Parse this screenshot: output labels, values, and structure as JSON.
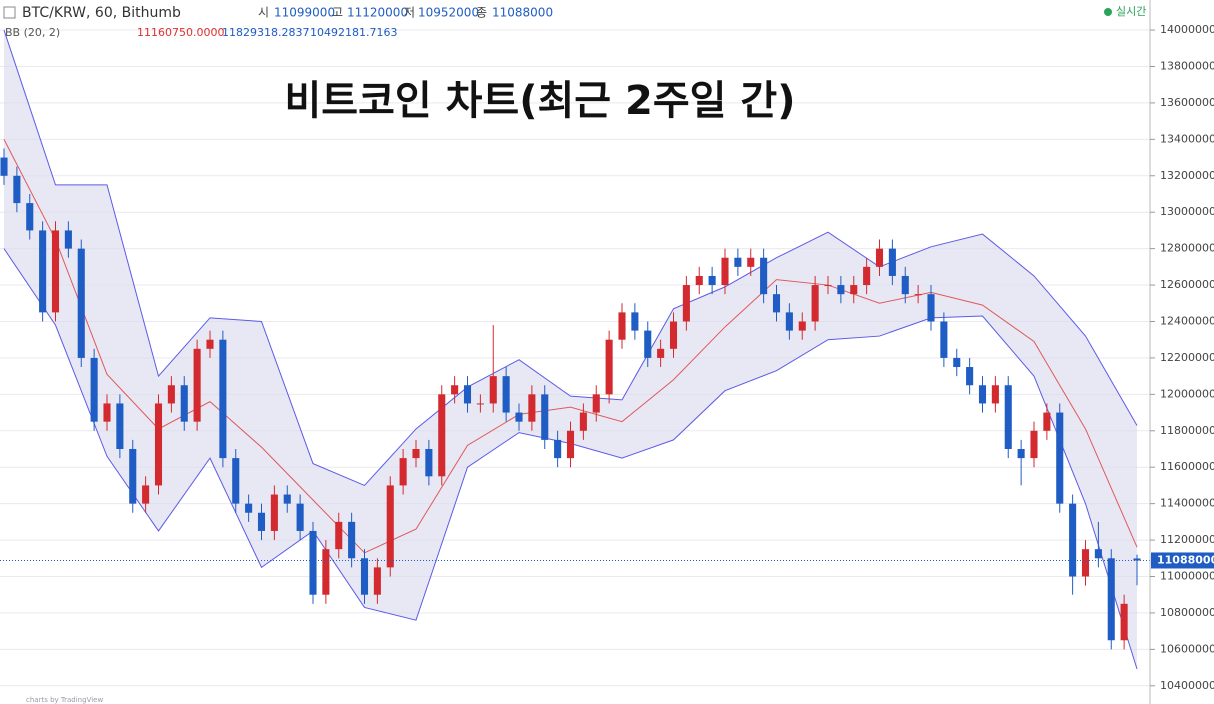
{
  "header": {
    "symbol": "BTC/KRW, 60, Bithumb",
    "open_label": "시",
    "high_label": "고",
    "low_label": "저",
    "close_label": "종",
    "indicator": "BB (20, 2)",
    "status": "실시간",
    "footer": "charts by TradingView"
  },
  "chart_data": {
    "type": "candlestick",
    "title": "비트코인 차트(최근 2주일 간)",
    "candles": {
      "open": [
        13300000,
        13200000,
        13050000,
        12900000,
        12450000,
        12900000,
        12800000,
        12200000,
        11850000,
        11950000,
        11700000,
        11400000,
        11500000,
        11950000,
        12050000,
        11850000,
        12250000,
        12300000,
        11650000,
        11400000,
        11350000,
        11250000,
        11450000,
        11400000,
        11250000,
        10900000,
        11150000,
        11300000,
        11100000,
        10900000,
        11050000,
        11500000,
        11650000,
        11700000,
        11550000,
        12000000,
        12050000,
        11950000,
        11950000,
        12100000,
        11900000,
        11850000,
        12000000,
        11750000,
        11650000,
        11800000,
        11900000,
        12000000,
        12300000,
        12450000,
        12350000,
        12200000,
        12250000,
        12400000,
        12600000,
        12650000,
        12600000,
        12750000,
        12700000,
        12750000,
        12550000,
        12450000,
        12350000,
        12400000,
        12600000,
        12600000,
        12550000,
        12600000,
        12700000,
        12800000,
        12650000,
        12550000,
        12550000,
        12400000,
        12200000,
        12150000,
        12050000,
        11950000,
        12050000,
        11700000,
        11650000,
        11800000,
        11900000,
        11400000,
        11000000,
        11150000,
        11100000,
        10650000,
        11099000
      ],
      "high": [
        13350000,
        13250000,
        13100000,
        12950000,
        12950000,
        12950000,
        12850000,
        12250000,
        12000000,
        12000000,
        11750000,
        11550000,
        12000000,
        12100000,
        12100000,
        12300000,
        12350000,
        12350000,
        11700000,
        11450000,
        11400000,
        11500000,
        11500000,
        11450000,
        11300000,
        11200000,
        11350000,
        11350000,
        11150000,
        11100000,
        11550000,
        11700000,
        11750000,
        11750000,
        12050000,
        12100000,
        12100000,
        12000000,
        12380000,
        12150000,
        11950000,
        12050000,
        12050000,
        11800000,
        11850000,
        11950000,
        12050000,
        12350000,
        12500000,
        12500000,
        12400000,
        12300000,
        12450000,
        12650000,
        12700000,
        12700000,
        12800000,
        12800000,
        12800000,
        12800000,
        12600000,
        12500000,
        12450000,
        12650000,
        12650000,
        12650000,
        12650000,
        12750000,
        12850000,
        12850000,
        12700000,
        12600000,
        12600000,
        12450000,
        12250000,
        12200000,
        12100000,
        12100000,
        12100000,
        11750000,
        11850000,
        11950000,
        11950000,
        11450000,
        11200000,
        11300000,
        11150000,
        10900000,
        11120000
      ],
      "low": [
        13150000,
        13000000,
        12850000,
        12400000,
        12400000,
        12750000,
        12150000,
        11800000,
        11800000,
        11650000,
        11350000,
        11350000,
        11450000,
        11900000,
        11800000,
        11800000,
        12200000,
        11600000,
        11350000,
        11300000,
        11200000,
        11200000,
        11350000,
        11200000,
        10850000,
        10850000,
        11100000,
        11050000,
        10850000,
        10850000,
        11000000,
        11450000,
        11600000,
        11500000,
        11500000,
        11950000,
        11900000,
        11900000,
        11900000,
        11850000,
        11800000,
        11800000,
        11700000,
        11600000,
        11600000,
        11750000,
        11850000,
        11950000,
        12250000,
        12300000,
        12150000,
        12150000,
        12200000,
        12350000,
        12550000,
        12550000,
        12550000,
        12650000,
        12650000,
        12500000,
        12400000,
        12300000,
        12300000,
        12350000,
        12550000,
        12500000,
        12500000,
        12550000,
        12650000,
        12600000,
        12500000,
        12500000,
        12350000,
        12150000,
        12100000,
        12000000,
        11900000,
        11900000,
        11650000,
        11500000,
        11600000,
        11750000,
        11350000,
        10900000,
        10950000,
        11050000,
        10600000,
        10600000,
        10952000
      ],
      "close": [
        13200000,
        13050000,
        12900000,
        12450000,
        12900000,
        12800000,
        12200000,
        11850000,
        11950000,
        11700000,
        11400000,
        11500000,
        11950000,
        12050000,
        11850000,
        12250000,
        12300000,
        11650000,
        11400000,
        11350000,
        11250000,
        11450000,
        11400000,
        11250000,
        10900000,
        11150000,
        11300000,
        11100000,
        10900000,
        11050000,
        11500000,
        11650000,
        11700000,
        11550000,
        12000000,
        12050000,
        11950000,
        11950000,
        12100000,
        11900000,
        11850000,
        12000000,
        11750000,
        11650000,
        11800000,
        11900000,
        12000000,
        12300000,
        12450000,
        12350000,
        12200000,
        12250000,
        12400000,
        12600000,
        12650000,
        12600000,
        12750000,
        12700000,
        12750000,
        12550000,
        12450000,
        12350000,
        12400000,
        12600000,
        12600000,
        12550000,
        12600000,
        12700000,
        12800000,
        12650000,
        12550000,
        12550000,
        12400000,
        12200000,
        12150000,
        12050000,
        11950000,
        12050000,
        11700000,
        11650000,
        11800000,
        11900000,
        11400000,
        11000000,
        11150000,
        11100000,
        10650000,
        10850000,
        11088000
      ]
    },
    "up_color": "#d22a2f",
    "down_color": "#1f5cc4",
    "bollinger": {
      "x": [
        0,
        4,
        8,
        12,
        16,
        20,
        24,
        28,
        32,
        36,
        40,
        44,
        48,
        52,
        56,
        60,
        64,
        68,
        72,
        76,
        80,
        84,
        88
      ],
      "upper": [
        14000000,
        13150000,
        13150000,
        12100000,
        12420000,
        12400000,
        11620000,
        11500000,
        11810000,
        12040000,
        12190000,
        11990000,
        11970000,
        12470000,
        12590000,
        12750000,
        12890000,
        12700000,
        12810000,
        12880000,
        12650000,
        12320000,
        11829318.2837
      ],
      "middle": [
        13400000,
        12850000,
        12110000,
        11810000,
        11960000,
        11710000,
        11420000,
        11130000,
        11260000,
        11720000,
        11890000,
        11930000,
        11850000,
        12080000,
        12370000,
        12630000,
        12600000,
        12500000,
        12560000,
        12490000,
        12290000,
        11810000,
        11160750
      ],
      "lower": [
        12800000,
        12380000,
        11660000,
        11250000,
        11650000,
        11050000,
        11250000,
        10830000,
        10760000,
        11600000,
        11790000,
        11730000,
        11650000,
        11750000,
        12020000,
        12130000,
        12300000,
        12320000,
        12420000,
        12430000,
        12100000,
        11400000,
        10492181.7163
      ],
      "value_labels": {
        "middle": "11160750.0000",
        "upper": "11829318.2837",
        "lower": "10492181.7163"
      },
      "band_color": "#5b5be6",
      "middle_color": "#e0585a",
      "fill_color": "#d9d9ef"
    },
    "ylim": [
      10300000,
      14165000
    ],
    "yticks": [
      10400000,
      10600000,
      10800000,
      11000000,
      11200000,
      11400000,
      11600000,
      11800000,
      12000000,
      12200000,
      12400000,
      12600000,
      12800000,
      13000000,
      13200000,
      13400000,
      13600000,
      13800000,
      14000000
    ],
    "grid": true
  }
}
